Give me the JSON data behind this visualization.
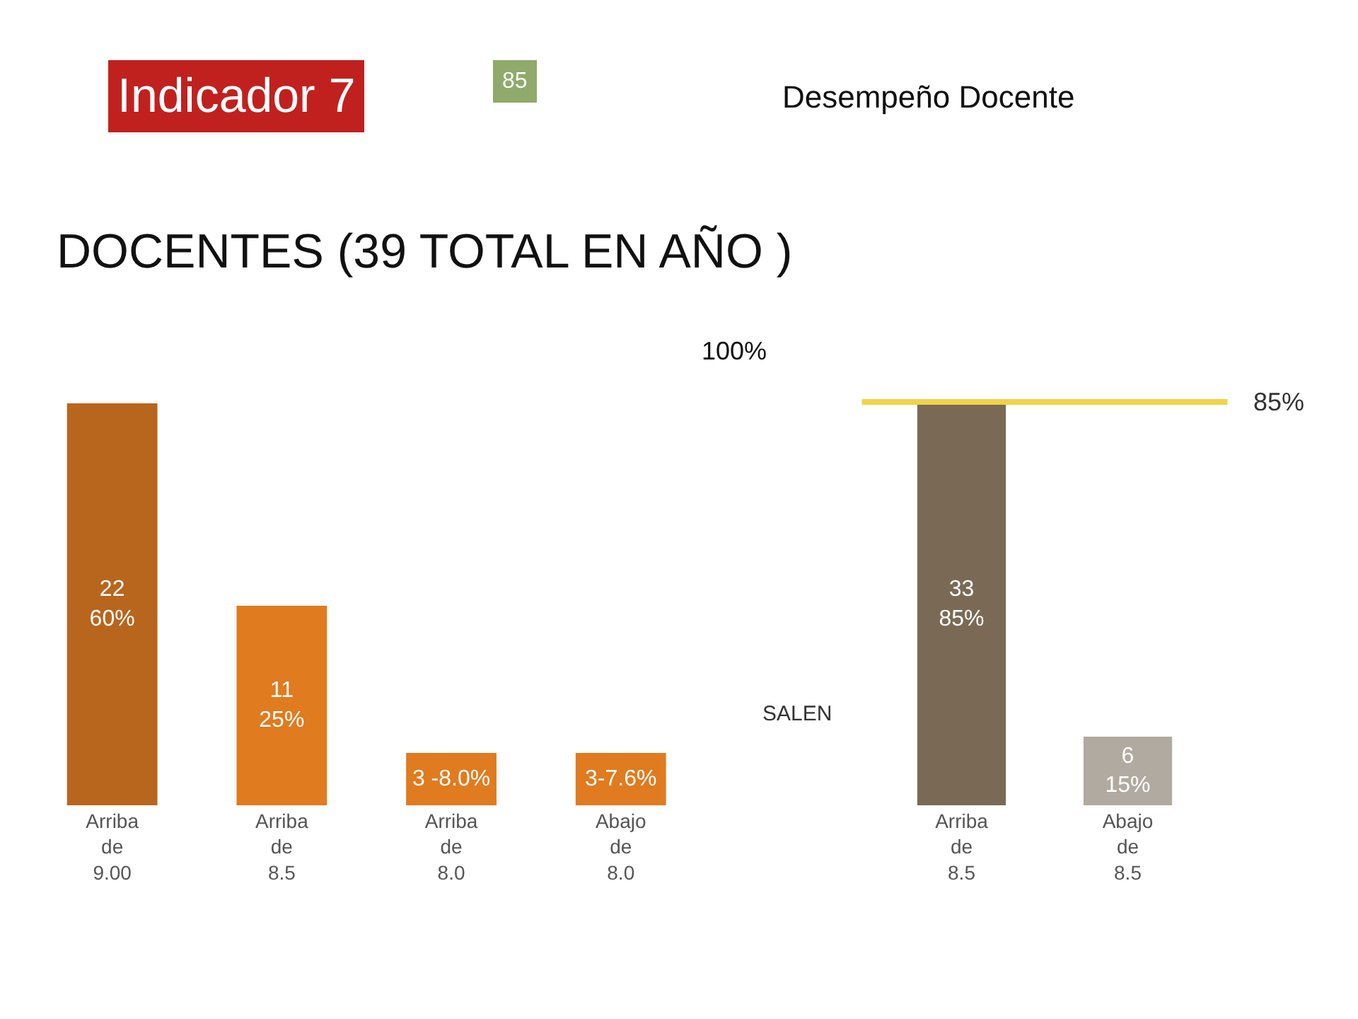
{
  "chart_data": [
    {
      "type": "bar",
      "title": "DOCENTES (39 TOTAL EN AÑO )",
      "categories": [
        "Arriba de 9.00",
        "Arriba de 8.5",
        "Arriba de 8.0",
        "Abajo de 8.0"
      ],
      "values": [
        22,
        11,
        3,
        3
      ],
      "value_labels": [
        "22\n60%",
        "11\n25%",
        "3 -8.0%",
        "3-7.6%"
      ],
      "colors": [
        "#b8661e",
        "#e07b1f",
        "#e07b1f",
        "#e07b1f"
      ],
      "tick_labels": "x",
      "annotations": [
        "Indicador 7",
        "85",
        "Desempeño Docente",
        "100%",
        "SALEN"
      ]
    },
    {
      "type": "bar",
      "categories": [
        "Arriba de 8.5",
        "Abajo de 8.5"
      ],
      "values": [
        85,
        15
      ],
      "value_labels": [
        "33\n85%",
        "6\n15%"
      ],
      "colors": [
        "#7a6a55",
        "#b0aaa0"
      ],
      "tick_labels": "x",
      "ref_lines": [
        {
          "axis": "y",
          "value": 85,
          "label": "85%",
          "color": "#f2d24a"
        }
      ]
    }
  ]
}
